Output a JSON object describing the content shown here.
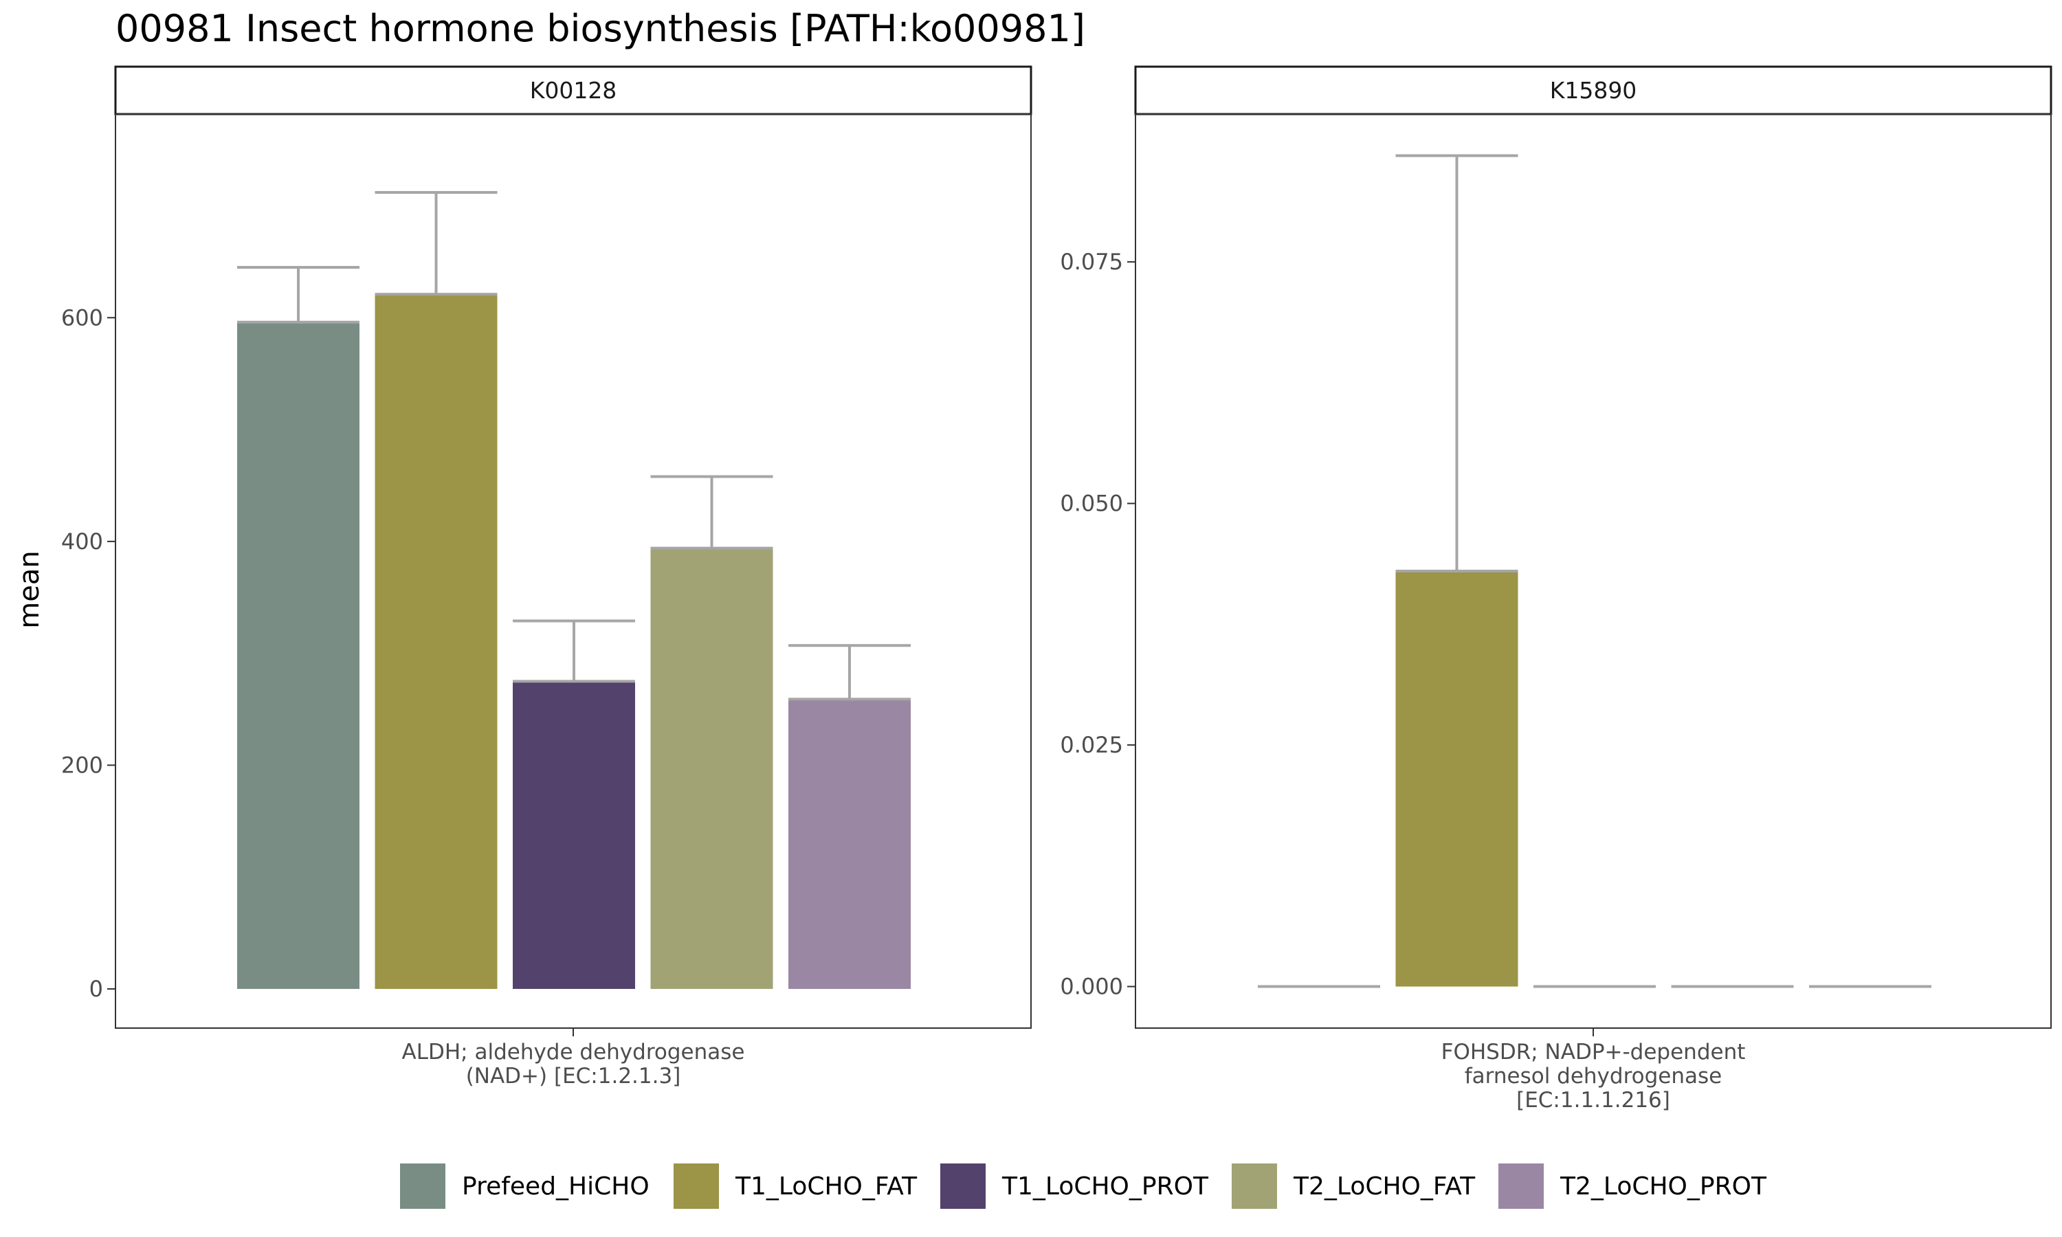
{
  "chart_data": {
    "type": "bar",
    "title": "00981 Insect hormone biosynthesis [PATH:ko00981]",
    "ylabel": "mean",
    "xlabel": "",
    "legend_position": "bottom",
    "series_names": [
      "Prefeed_HiCHO",
      "T1_LoCHO_FAT",
      "T1_LoCHO_PROT",
      "T2_LoCHO_FAT",
      "T2_LoCHO_PROT"
    ],
    "colors": [
      "#798D85",
      "#9C9446",
      "#53426C",
      "#A2A374",
      "#9A87A4"
    ],
    "error_bar_color": "#A6A6A6",
    "panels": [
      {
        "strip": "K00128",
        "category_lines": [
          "ALDH; aldehyde dehydrogenase",
          "(NAD+) [EC:1.2.1.3]"
        ],
        "ylim": [
          -35,
          782
        ],
        "yticks": [
          0,
          200,
          400,
          600
        ],
        "ytick_labels": [
          "0",
          "200",
          "400",
          "600"
        ],
        "values": [
          596,
          621,
          275,
          394,
          259
        ],
        "error_upper": [
          645,
          712,
          329,
          458,
          307
        ]
      },
      {
        "strip": "K15890",
        "category_lines": [
          "FOHSDR; NADP+-dependent",
          "farnesol dehydrogenase",
          "[EC:1.1.1.216]"
        ],
        "ylim": [
          -0.0043,
          0.0903
        ],
        "yticks": [
          0,
          0.025,
          0.05,
          0.075
        ],
        "ytick_labels": [
          "0.000",
          "0.025",
          "0.050",
          "0.075"
        ],
        "values": [
          0,
          0.043,
          0,
          0,
          0
        ],
        "error_upper": [
          0,
          0.086,
          0,
          0,
          0
        ]
      }
    ]
  }
}
